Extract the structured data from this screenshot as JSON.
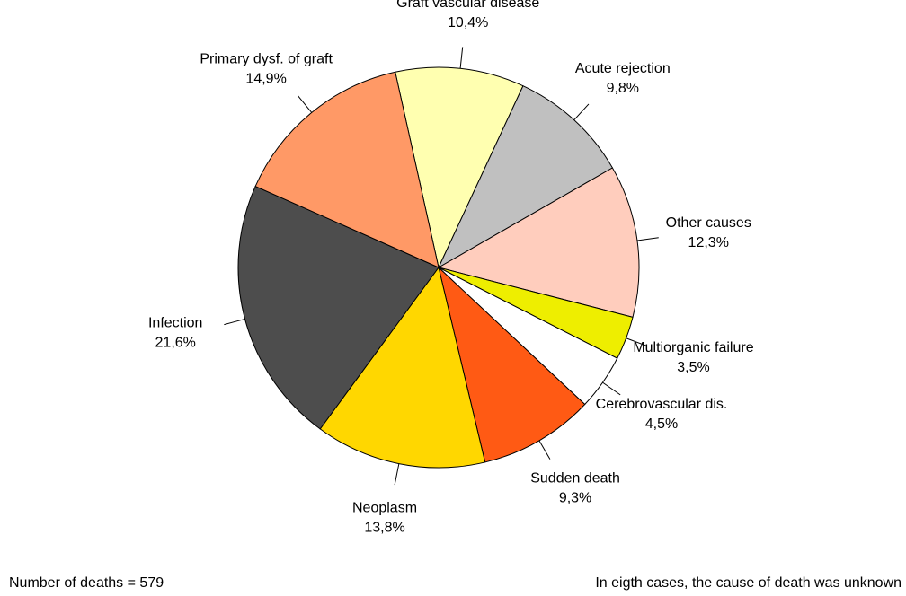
{
  "chart_data": {
    "type": "pie",
    "categories": [
      "Graft vascular disease",
      "Acute rejection",
      "Other causes",
      "Multiorganic failure",
      "Cerebrovascular dis.",
      "Sudden death",
      "Neoplasm",
      "Infection",
      "Primary dysf. of graft"
    ],
    "values": [
      10.4,
      9.8,
      12.3,
      3.5,
      4.5,
      9.3,
      13.8,
      21.6,
      14.9
    ],
    "value_labels": [
      "10,4%",
      "9,8%",
      "12,3%",
      "3,5%",
      "4,5%",
      "9,3%",
      "13,8%",
      "21,6%",
      "14,9%"
    ],
    "colors": [
      "#ffffb0",
      "#c0c0c0",
      "#ffcdbd",
      "#eeee00",
      "#ffffff",
      "#ff5a14",
      "#ffd700",
      "#4d4d4d",
      "#ff9966"
    ],
    "notes": [
      "Number of deaths = 579",
      "In eigth cases, the cause of death was unknown"
    ]
  }
}
